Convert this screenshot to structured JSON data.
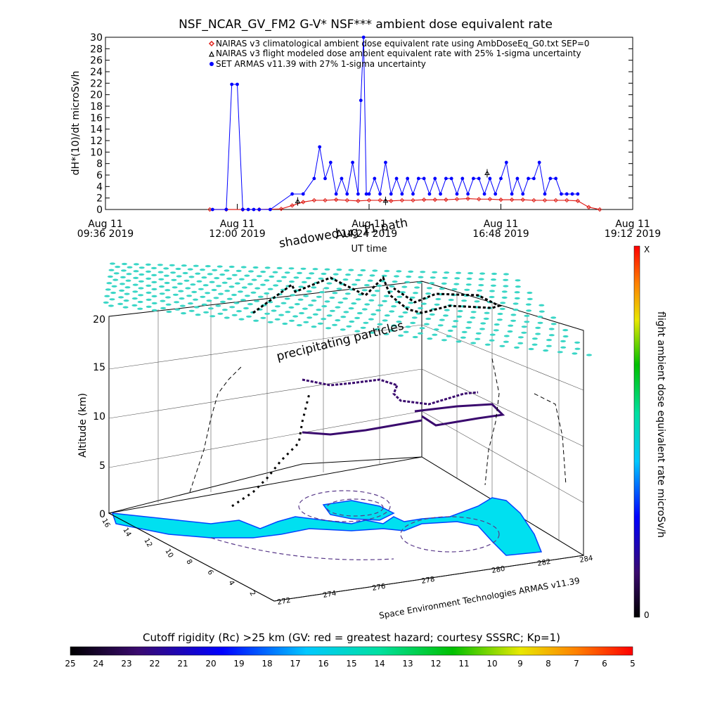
{
  "chart_data": [
    {
      "type": "line",
      "title": "NSF_NCAR_GV_FM2 G-V* NSF*** ambient dose equivalent rate",
      "ylabel": "dH*(10)/dt microSv/h",
      "xlabel": "UT time",
      "ylim": [
        0,
        30
      ],
      "yticks": [
        "0",
        "2",
        "4",
        "6",
        "8",
        "10",
        "12",
        "14",
        "16",
        "18",
        "20",
        "22",
        "24",
        "26",
        "28",
        "30"
      ],
      "xticks": [
        {
          "t": 9.6,
          "l1": "Aug 11",
          "l2": "09:36 2019"
        },
        {
          "t": 12.0,
          "l1": "Aug 11",
          "l2": "12:00 2019"
        },
        {
          "t": 14.4,
          "l1": "Aug 11",
          "l2": "14:24 2019"
        },
        {
          "t": 16.8,
          "l1": "Aug 11",
          "l2": "16:48 2019"
        },
        {
          "t": 19.2,
          "l1": "Aug 11",
          "l2": "19:12 2019"
        }
      ],
      "xlim": [
        9.6,
        19.2
      ],
      "legend_position": "top",
      "series": [
        {
          "name": "NAIRAS v3 climatological ambient dose equivalent rate using AmbDoseEq_G0.txt SEP=0",
          "color": "#e0201a",
          "marker": "diamond",
          "x": [
            11.5,
            11.8,
            12.1,
            12.4,
            12.8,
            13.0,
            13.2,
            13.4,
            13.6,
            13.8,
            14.0,
            14.2,
            14.4,
            14.6,
            14.8,
            15.0,
            15.2,
            15.4,
            15.6,
            15.8,
            16.0,
            16.2,
            16.4,
            16.6,
            16.8,
            17.0,
            17.2,
            17.4,
            17.6,
            17.8,
            18.0,
            18.2,
            18.4,
            18.6
          ],
          "values": [
            0,
            0,
            0,
            0,
            0.1,
            0.7,
            1.3,
            1.6,
            1.6,
            1.7,
            1.6,
            1.5,
            1.6,
            1.6,
            1.5,
            1.6,
            1.6,
            1.7,
            1.7,
            1.7,
            1.8,
            1.9,
            1.8,
            1.8,
            1.7,
            1.7,
            1.7,
            1.6,
            1.6,
            1.6,
            1.6,
            1.5,
            0.4,
            0
          ]
        },
        {
          "name": "NAIRAS v3 flight modeled dose ambient equivalent rate with 25% 1-sigma uncertainty",
          "color": "#000000",
          "marker": "triangle",
          "x": [
            13.1,
            14.7,
            16.55
          ],
          "values": [
            1.4,
            1.5,
            6.3
          ]
        },
        {
          "name": "SET ARMAS v11.39 with 27% 1-sigma uncertainty",
          "color": "#0000ff",
          "marker": "dot",
          "x": [
            11.55,
            11.8,
            11.9,
            12.0,
            12.1,
            12.2,
            12.3,
            12.4,
            12.6,
            13.0,
            13.2,
            13.4,
            13.5,
            13.6,
            13.7,
            13.8,
            13.9,
            14.0,
            14.1,
            14.2,
            14.25,
            14.3,
            14.35,
            14.4,
            14.5,
            14.6,
            14.7,
            14.8,
            14.9,
            15.0,
            15.1,
            15.2,
            15.3,
            15.4,
            15.5,
            15.6,
            15.7,
            15.8,
            15.9,
            16.0,
            16.1,
            16.2,
            16.3,
            16.4,
            16.5,
            16.6,
            16.7,
            16.8,
            16.9,
            17.0,
            17.1,
            17.2,
            17.3,
            17.4,
            17.5,
            17.6,
            17.7,
            17.8,
            17.9,
            18.0,
            18.1,
            18.2
          ],
          "values": [
            0,
            0,
            21.8,
            21.8,
            0,
            0,
            0,
            0,
            0,
            2.7,
            2.7,
            5.4,
            10.9,
            5.4,
            8.2,
            2.7,
            5.4,
            2.7,
            8.2,
            2.7,
            19.0,
            30,
            2.7,
            2.7,
            5.4,
            2.7,
            8.2,
            2.7,
            5.4,
            2.7,
            5.4,
            2.7,
            5.4,
            5.4,
            2.7,
            5.4,
            2.7,
            5.4,
            5.4,
            2.7,
            5.4,
            2.7,
            5.4,
            5.4,
            2.7,
            5.4,
            2.7,
            5.4,
            8.2,
            2.7,
            5.4,
            2.7,
            5.4,
            5.4,
            8.2,
            2.7,
            5.4,
            5.4,
            2.7,
            2.7,
            2.7,
            2.7
          ]
        }
      ]
    },
    {
      "type": "scatter",
      "title": "",
      "zlabel": "Altitude (km)",
      "zticks": [
        "0",
        "5",
        "10",
        "15",
        "20"
      ],
      "lon_ticks": [
        "272",
        "274",
        "276",
        "278",
        "280",
        "282",
        "284"
      ],
      "lat_ticks": [
        "16",
        "14",
        "12",
        "10",
        "8",
        "6",
        "4",
        "2"
      ],
      "annotations": [
        "shadowed",
        "Aug 11 path",
        "precipitating particles"
      ],
      "credit": "Space Environment Technologies ARMAS v11.39",
      "colorbar": {
        "label": "flight ambient dose equivalent rate microSv/h",
        "top": "X",
        "bottom": "0"
      },
      "cutoff_bar": {
        "label": "Cutoff rigidity (Rc) >25 km (GV: red = greatest hazard; courtesy SSSRC; Kp=1)",
        "ticks": [
          "25",
          "24",
          "23",
          "22",
          "21",
          "20",
          "19",
          "18",
          "17",
          "16",
          "15",
          "14",
          "13",
          "12",
          "11",
          "10",
          "9",
          "8",
          "7",
          "6",
          "5"
        ]
      }
    }
  ]
}
